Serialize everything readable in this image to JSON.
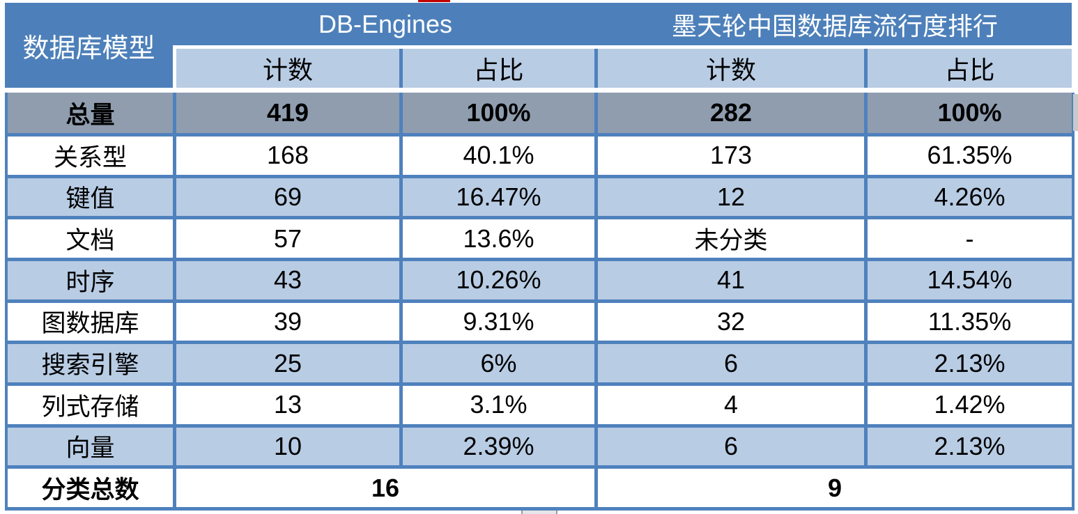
{
  "table": {
    "corner_header": "数据库模型",
    "group_headers": [
      "DB-Engines",
      "墨天轮中国数据库流行度排行"
    ],
    "sub_headers": [
      "计数",
      "占比",
      "计数",
      "占比"
    ],
    "rows": [
      {
        "label": "总量",
        "values": [
          "419",
          "100%",
          "282",
          "100%"
        ]
      },
      {
        "label": "关系型",
        "values": [
          "168",
          "40.1%",
          "173",
          "61.35%"
        ]
      },
      {
        "label": "键值",
        "values": [
          "69",
          "16.47%",
          "12",
          "4.26%"
        ]
      },
      {
        "label": "文档",
        "values": [
          "57",
          "13.6%",
          "未分类",
          "-"
        ]
      },
      {
        "label": "时序",
        "values": [
          "43",
          "10.26%",
          "41",
          "14.54%"
        ]
      },
      {
        "label": "图数据库",
        "values": [
          "39",
          "9.31%",
          "32",
          "11.35%"
        ]
      },
      {
        "label": "搜索引擎",
        "values": [
          "25",
          "6%",
          "6",
          "2.13%"
        ]
      },
      {
        "label": "列式存储",
        "values": [
          "13",
          "3.1%",
          "4",
          "1.42%"
        ]
      },
      {
        "label": "向量",
        "values": [
          "10",
          "2.39%",
          "6",
          "2.13%"
        ]
      }
    ],
    "footer": {
      "label": "分类总数",
      "left_value": "16",
      "right_value": "9"
    }
  },
  "chart_data": {
    "type": "table",
    "title": "数据库模型流行度对比：DB-Engines vs 墨天轮中国数据库流行度排行",
    "columns": [
      "数据库模型",
      "DB-Engines 计数",
      "DB-Engines 占比",
      "墨天轮 计数",
      "墨天轮 占比"
    ],
    "rows": [
      [
        "总量",
        419,
        "100%",
        282,
        "100%"
      ],
      [
        "关系型",
        168,
        "40.1%",
        173,
        "61.35%"
      ],
      [
        "键值",
        69,
        "16.47%",
        12,
        "4.26%"
      ],
      [
        "文档",
        57,
        "13.6%",
        "未分类",
        "-"
      ],
      [
        "时序",
        43,
        "10.26%",
        41,
        "14.54%"
      ],
      [
        "图数据库",
        39,
        "9.31%",
        32,
        "11.35%"
      ],
      [
        "搜索引擎",
        25,
        "6%",
        6,
        "2.13%"
      ],
      [
        "列式存储",
        13,
        "3.1%",
        4,
        "1.42%"
      ],
      [
        "向量",
        10,
        "2.39%",
        6,
        "2.13%"
      ],
      [
        "分类总数",
        16,
        "",
        9,
        ""
      ]
    ]
  },
  "colors": {
    "header_blue": "#4d80ba",
    "border_blue": "#4f81bd",
    "subheader_light_blue": "#b8cce4",
    "total_row_gray": "#8f9daf",
    "alt_row_blue": "#b8cce4",
    "row_white": "#ffffff",
    "header_text": "#ffffff",
    "body_text": "#000000",
    "artifact_red": "#c00000"
  }
}
